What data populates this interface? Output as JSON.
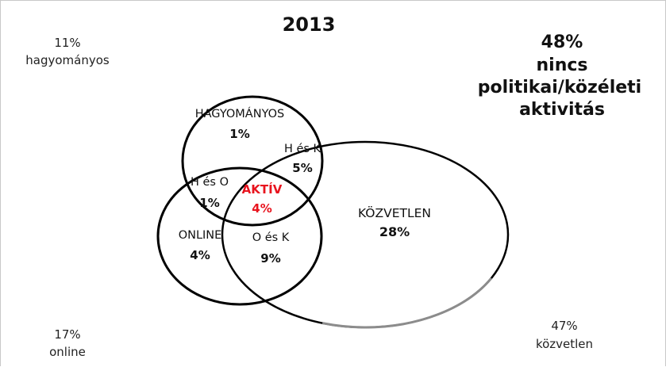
{
  "title": "2013",
  "no_activity": {
    "pct": "48%",
    "line1": "nincs",
    "line2": "politikai/közéleti",
    "line3": "aktivitás"
  },
  "corners": {
    "traditional": {
      "pct": "11%",
      "label": "hagyományos"
    },
    "online": {
      "pct": "17%",
      "label": "online"
    },
    "direct": {
      "pct": "47%",
      "label": "közvetlen"
    }
  },
  "regions": {
    "hagyomanyos": {
      "label": "HAGYOMÁNYOS",
      "pct": "1%"
    },
    "h_es_k": {
      "label": "H és K",
      "pct": "5%"
    },
    "h_es_o": {
      "label": "H és O",
      "pct": "1%"
    },
    "aktiv": {
      "label": "AKTÍV",
      "pct": "4%"
    },
    "kozvetlen": {
      "label": "KÖZVETLEN",
      "pct": "28%"
    },
    "online": {
      "label": "ONLINE",
      "pct": "4%"
    },
    "o_es_k": {
      "label": "O és K",
      "pct": "9%"
    }
  },
  "colors": {
    "accent_red": "#e8141e",
    "outline_dark": "#000000",
    "outline_grey": "#8c8c8c"
  }
}
